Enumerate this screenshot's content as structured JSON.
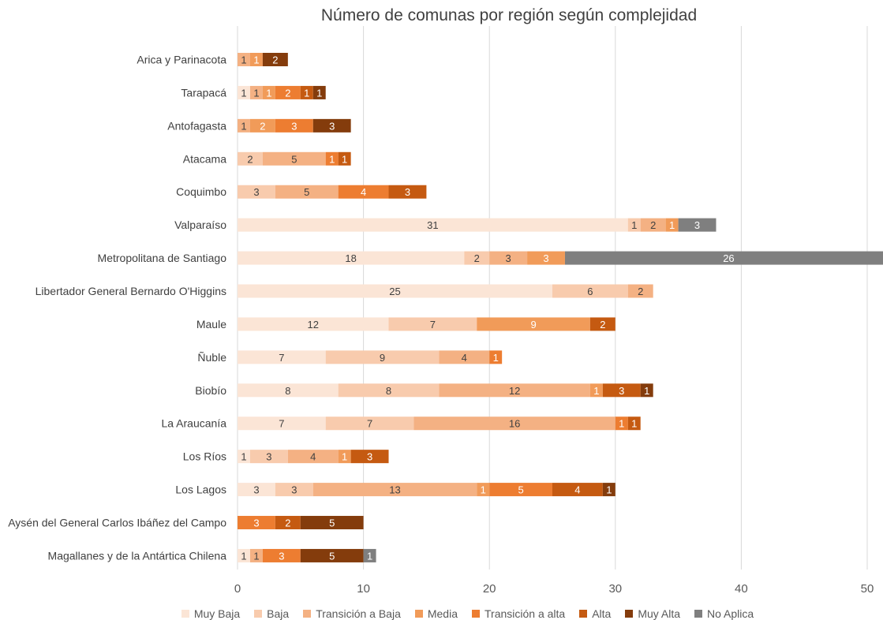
{
  "chart_data": {
    "type": "bar",
    "orientation": "horizontal",
    "stacked": true,
    "title": "Número de comunas por región según complejidad",
    "xlabel": "",
    "ylabel": "",
    "xlim": [
      0,
      50
    ],
    "x_ticks": [
      0,
      10,
      20,
      30,
      40,
      50
    ],
    "grid": true,
    "legend_position": "bottom",
    "categories": [
      "Arica y Parinacota",
      "Tarapacá",
      "Antofagasta",
      "Atacama",
      "Coquimbo",
      "Valparaíso",
      "Metropolitana de Santiago",
      "Libertador General Bernardo O'Higgins",
      "Maule",
      "Ñuble",
      "Biobío",
      "La Araucanía",
      "Los Ríos",
      "Los Lagos",
      "Aysén del General Carlos Ibáñez del Campo",
      "Magallanes y de la Antártica Chilena"
    ],
    "series": [
      {
        "name": "Muy Baja",
        "color": "#fbe5d6",
        "label_color": "#404040",
        "values": [
          0,
          1,
          0,
          0,
          0,
          31,
          18,
          25,
          12,
          7,
          8,
          7,
          1,
          3,
          0,
          1
        ]
      },
      {
        "name": "Baja",
        "color": "#f8cbad",
        "label_color": "#404040",
        "values": [
          0,
          0,
          0,
          2,
          3,
          1,
          2,
          6,
          7,
          9,
          8,
          7,
          3,
          3,
          0,
          0
        ]
      },
      {
        "name": "Transición a Baja",
        "color": "#f4b183",
        "label_color": "#404040",
        "values": [
          1,
          1,
          1,
          5,
          5,
          2,
          3,
          2,
          0,
          4,
          12,
          16,
          4,
          13,
          0,
          1
        ]
      },
      {
        "name": "Media",
        "color": "#f19b59",
        "label_color": "#ffffff",
        "values": [
          1,
          1,
          2,
          0,
          0,
          1,
          3,
          0,
          9,
          0,
          1,
          0,
          1,
          1,
          0,
          0
        ]
      },
      {
        "name": "Transición a alta",
        "color": "#ed7d31",
        "label_color": "#ffffff",
        "values": [
          0,
          2,
          3,
          1,
          4,
          0,
          0,
          0,
          0,
          1,
          0,
          1,
          0,
          5,
          3,
          3
        ]
      },
      {
        "name": "Alta",
        "color": "#c55a11",
        "label_color": "#ffffff",
        "values": [
          0,
          1,
          0,
          1,
          3,
          0,
          0,
          0,
          2,
          0,
          3,
          1,
          3,
          4,
          2,
          0
        ]
      },
      {
        "name": "Muy Alta",
        "color": "#843c0c",
        "label_color": "#ffffff",
        "values": [
          2,
          1,
          3,
          0,
          0,
          0,
          0,
          0,
          0,
          0,
          1,
          0,
          0,
          1,
          5,
          5
        ]
      },
      {
        "name": "No Aplica",
        "color": "#7f7f7f",
        "label_color": "#ffffff",
        "values": [
          0,
          0,
          0,
          0,
          0,
          3,
          26,
          0,
          0,
          0,
          0,
          0,
          0,
          0,
          0,
          1
        ]
      }
    ]
  }
}
